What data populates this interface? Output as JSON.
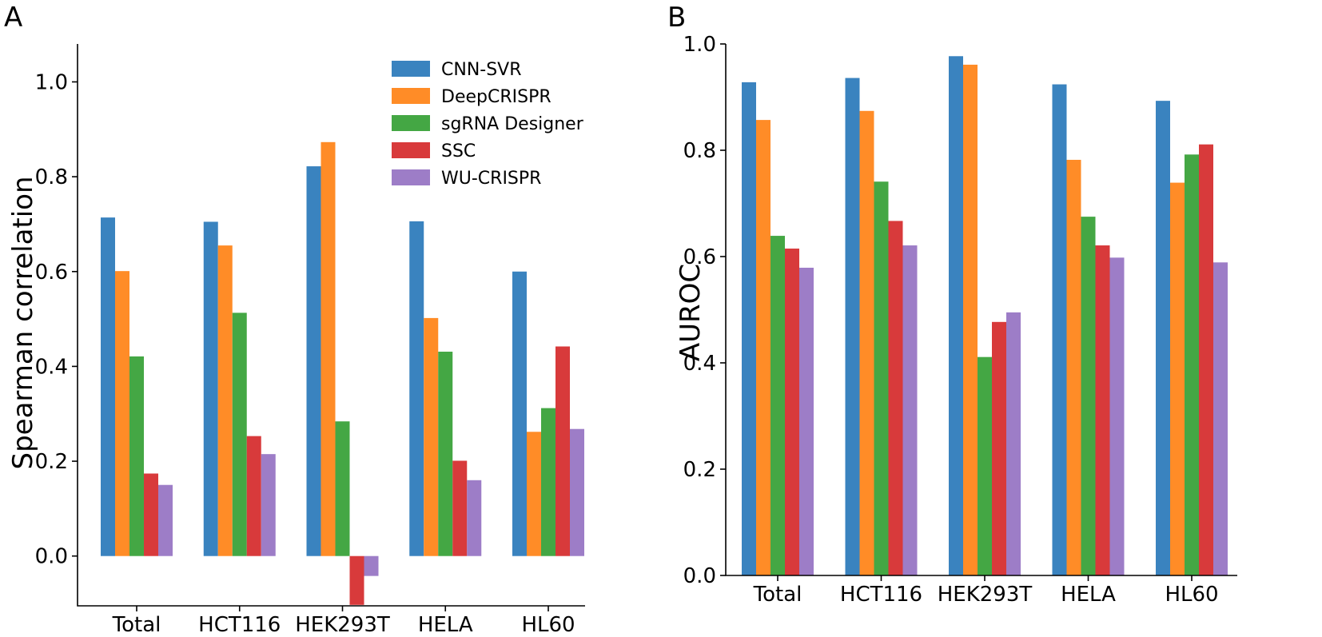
{
  "chart_data": [
    {
      "panel_label": "A",
      "type": "bar",
      "title": "",
      "xlabel": "",
      "ylabel": "Spearman correlation",
      "categories": [
        "Total",
        "HCT116",
        "HEK293T",
        "HELA",
        "HL60"
      ],
      "ylim": [
        -0.105,
        1.08
      ],
      "yticks": [
        0.0,
        0.2,
        0.4,
        0.6,
        0.8,
        1.0
      ],
      "ytick_labels": [
        "0.0",
        "0.2",
        "0.4",
        "0.6",
        "0.8",
        "1.0"
      ],
      "legend_position": "top-right",
      "series": [
        {
          "name": "CNN-SVR",
          "color": "#3a83bf",
          "values": [
            0.714,
            0.705,
            0.822,
            0.706,
            0.6
          ]
        },
        {
          "name": "DeepCRISPR",
          "color": "#ff8c27",
          "values": [
            0.601,
            0.655,
            0.873,
            0.502,
            0.262
          ]
        },
        {
          "name": "sgRNA Designer",
          "color": "#44a744",
          "values": [
            0.421,
            0.513,
            0.284,
            0.431,
            0.312
          ]
        },
        {
          "name": "SSC",
          "color": "#d83a3b",
          "values": [
            0.174,
            0.253,
            -0.103,
            0.201,
            0.442
          ]
        },
        {
          "name": "WU-CRISPR",
          "color": "#9d7dc7",
          "values": [
            0.15,
            0.215,
            -0.042,
            0.16,
            0.268
          ]
        }
      ]
    },
    {
      "panel_label": "B",
      "type": "bar",
      "title": "",
      "xlabel": "",
      "ylabel": "AUROC",
      "categories": [
        "Total",
        "HCT116",
        "HEK293T",
        "HELA",
        "HL60"
      ],
      "ylim": [
        0.0,
        1.0
      ],
      "yticks": [
        0.0,
        0.2,
        0.4,
        0.6,
        0.8,
        1.0
      ],
      "ytick_labels": [
        "0.0",
        "0.2",
        "0.4",
        "0.6",
        "0.8",
        "1.0"
      ],
      "series": [
        {
          "name": "CNN-SVR",
          "color": "#3a83bf",
          "values": [
            0.928,
            0.936,
            0.977,
            0.924,
            0.893
          ]
        },
        {
          "name": "DeepCRISPR",
          "color": "#ff8c27",
          "values": [
            0.857,
            0.874,
            0.961,
            0.782,
            0.739
          ]
        },
        {
          "name": "sgRNA Designer",
          "color": "#44a744",
          "values": [
            0.639,
            0.741,
            0.411,
            0.675,
            0.792
          ]
        },
        {
          "name": "SSC",
          "color": "#d83a3b",
          "values": [
            0.615,
            0.667,
            0.477,
            0.621,
            0.811
          ]
        },
        {
          "name": "WU-CRISPR",
          "color": "#9d7dc7",
          "values": [
            0.579,
            0.621,
            0.495,
            0.598,
            0.589
          ]
        }
      ]
    }
  ]
}
